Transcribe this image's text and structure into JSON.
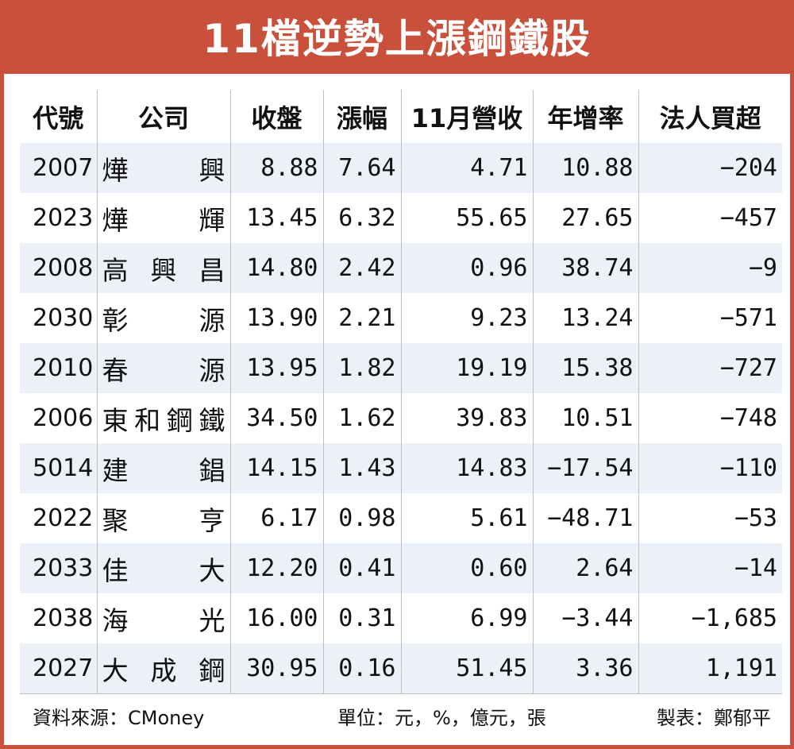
{
  "title": "11檔逆勢上漲鋼鐵股",
  "headers": [
    "代號",
    "公司",
    "收盤",
    "漲幅",
    "11月營收",
    "年增率",
    "法人買超"
  ],
  "rows": [
    {
      "code": "2007",
      "name": "燁　興",
      "close": "8.88",
      "change": "7.64",
      "revenue": "4.71",
      "yoy": "10.88",
      "inst": "−204"
    },
    {
      "code": "2023",
      "name": "燁　輝",
      "close": "13.45",
      "change": "6.32",
      "revenue": "55.65",
      "yoy": "27.65",
      "inst": "−457"
    },
    {
      "code": "2008",
      "name": "高興昌",
      "close": "14.80",
      "change": "2.42",
      "revenue": "0.96",
      "yoy": "38.74",
      "inst": "−9"
    },
    {
      "code": "2030",
      "name": "彰　源",
      "close": "13.90",
      "change": "2.21",
      "revenue": "9.23",
      "yoy": "13.24",
      "inst": "−571"
    },
    {
      "code": "2010",
      "name": "春　源",
      "close": "13.95",
      "change": "1.82",
      "revenue": "19.19",
      "yoy": "15.38",
      "inst": "−727"
    },
    {
      "code": "2006",
      "name": "東和鋼鐵",
      "close": "34.50",
      "change": "1.62",
      "revenue": "39.83",
      "yoy": "10.51",
      "inst": "−748"
    },
    {
      "code": "5014",
      "name": "建　錩",
      "close": "14.15",
      "change": "1.43",
      "revenue": "14.83",
      "yoy": "−17.54",
      "inst": "−110"
    },
    {
      "code": "2022",
      "name": "聚　亨",
      "close": "6.17",
      "change": "0.98",
      "revenue": "5.61",
      "yoy": "−48.71",
      "inst": "−53"
    },
    {
      "code": "2033",
      "name": "佳　大",
      "close": "12.20",
      "change": "0.41",
      "revenue": "0.60",
      "yoy": "2.64",
      "inst": "−14"
    },
    {
      "code": "2038",
      "name": "海　光",
      "close": "16.00",
      "change": "0.31",
      "revenue": "6.99",
      "yoy": "−3.44",
      "inst": "−1,685"
    },
    {
      "code": "2027",
      "name": "大成鋼",
      "close": "30.95",
      "change": "0.16",
      "revenue": "51.45",
      "yoy": "3.36",
      "inst": "1,191"
    }
  ],
  "footer": {
    "source": "資料來源：CMoney",
    "unit": "單位：元，%，億元，張",
    "maker": "製表：鄭郁平"
  }
}
